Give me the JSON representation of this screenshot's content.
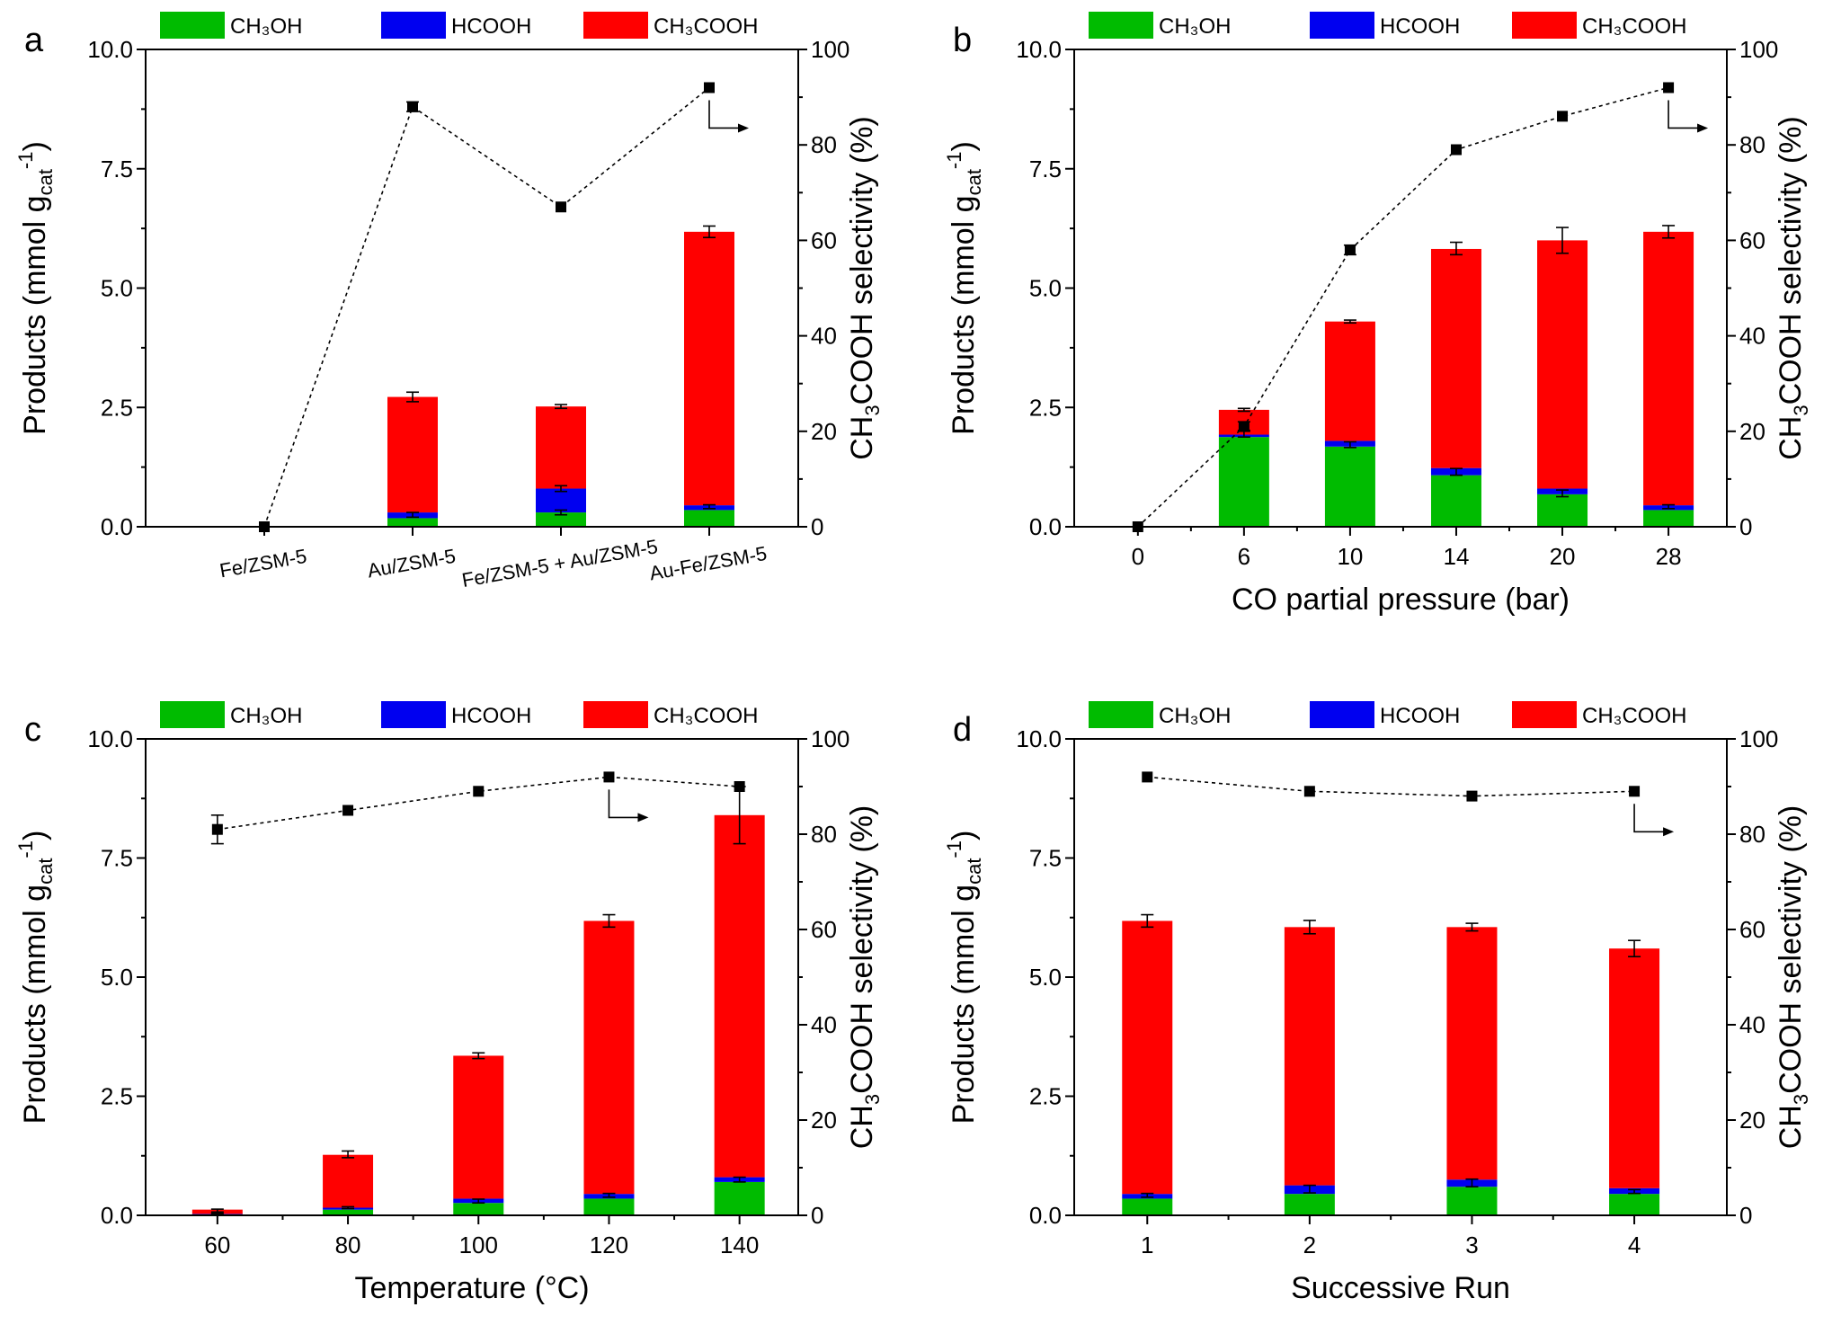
{
  "colors": {
    "ch3oh": "#00BB00",
    "hcooh": "#0000F0",
    "ch3cooh": "#FF0000",
    "axis": "#000000"
  },
  "legend": {
    "ch3oh": "CH₃OH",
    "hcooh": "HCOOH",
    "ch3cooh": "CH₃COOH"
  },
  "axis_titles": {
    "left_prefix": "Products (mmol g",
    "left_sub": "cat",
    "left_sup": "-1",
    "left_suffix": ")",
    "right_prefix": "CH",
    "right_sub": "3",
    "right_suffix": "COOH selectivity (%)"
  },
  "chart_data": [
    {
      "panel_label": "a",
      "type": "bar",
      "stacked": true,
      "xlabel": "",
      "categories": [
        "Fe/ZSM-5",
        "Au/ZSM-5",
        "Fe/ZSM-5 + Au/ZSM-5",
        "Au-Fe/ZSM-5"
      ],
      "category_ticks": [
        "Fe/ZSM-5",
        "Au/ZSM-5",
        "Fe/ZSM-5 + Au/ZSM-5",
        "Au-Fe/ZSM-5"
      ],
      "x_slots": [
        0,
        1,
        2,
        3
      ],
      "x_range": [
        -0.8,
        3.6
      ],
      "rotate_ticks": true,
      "ylim": [
        0,
        10
      ],
      "y2lim": [
        0,
        100
      ],
      "y_ticks": [
        "0.0",
        "2.5",
        "5.0",
        "7.5",
        "10.0"
      ],
      "y2_ticks": [
        "0",
        "20",
        "40",
        "60",
        "80",
        "100"
      ],
      "series": [
        {
          "name": "CH₃OH",
          "values": [
            0,
            0.18,
            0.3,
            0.35
          ]
        },
        {
          "name": "HCOOH",
          "values": [
            0,
            0.12,
            0.5,
            0.1
          ]
        },
        {
          "name": "CH₃COOH",
          "values": [
            0,
            2.42,
            1.72,
            5.73
          ]
        }
      ],
      "bar_errors": [
        {
          "y": [
            0,
            2.72,
            2.52,
            6.18
          ],
          "err": [
            0,
            0.1,
            0.04,
            0.12
          ]
        },
        {
          "y": [
            0,
            0.25,
            0.3,
            0.42
          ],
          "err": [
            0,
            0.05,
            0.05,
            0.04
          ]
        },
        {
          "y": [
            0,
            0,
            0.8,
            0
          ],
          "err": [
            0,
            0,
            0.06,
            0
          ]
        }
      ],
      "selectivity": {
        "values": [
          0,
          88,
          67,
          92
        ],
        "errors": [
          0,
          1,
          0,
          0
        ]
      },
      "arrow_at": 3
    },
    {
      "panel_label": "b",
      "type": "bar",
      "stacked": true,
      "xlabel": "CO partial pressure (bar)",
      "categories": [
        "0",
        "6",
        "10",
        "14",
        "20",
        "28"
      ],
      "category_ticks": [
        "0",
        "6",
        "10",
        "14",
        "20",
        "28"
      ],
      "x_slots": [
        0,
        1,
        2,
        3,
        4,
        5
      ],
      "x_range": [
        -0.6,
        5.55
      ],
      "rotate_ticks": false,
      "ylim": [
        0,
        10
      ],
      "y2lim": [
        0,
        100
      ],
      "y_ticks": [
        "0.0",
        "2.5",
        "5.0",
        "7.5",
        "10.0"
      ],
      "y2_ticks": [
        "0",
        "20",
        "40",
        "60",
        "80",
        "100"
      ],
      "series": [
        {
          "name": "CH₃OH",
          "values": [
            0,
            1.88,
            1.68,
            1.08,
            0.68,
            0.35
          ]
        },
        {
          "name": "HCOOH",
          "values": [
            0,
            0.05,
            0.12,
            0.15,
            0.12,
            0.1
          ]
        },
        {
          "name": "CH₃COOH",
          "values": [
            0,
            0.52,
            2.5,
            4.59,
            5.2,
            5.73
          ]
        }
      ],
      "bar_errors": [
        {
          "y": [
            0,
            2.45,
            4.3,
            5.83,
            6.0,
            6.18
          ],
          "err": [
            0,
            0.03,
            0.03,
            0.13,
            0.27,
            0.13
          ]
        },
        {
          "y": [
            0,
            1.95,
            1.72,
            1.15,
            0.7,
            0.42
          ],
          "err": [
            0,
            0.07,
            0.06,
            0.07,
            0.07,
            0.04
          ]
        }
      ],
      "selectivity": {
        "values": [
          0,
          21,
          58,
          79,
          86,
          92
        ],
        "errors": [
          0,
          1,
          1,
          0,
          0,
          0
        ]
      },
      "arrow_at": 5
    },
    {
      "panel_label": "c",
      "type": "bar",
      "stacked": true,
      "xlabel": "Temperature (°C)",
      "categories": [
        "60",
        "80",
        "100",
        "120",
        "140"
      ],
      "category_ticks": [
        "60",
        "80",
        "100",
        "120",
        "140"
      ],
      "x_slots": [
        0,
        1,
        2,
        3,
        4
      ],
      "x_range": [
        -0.55,
        4.45
      ],
      "rotate_ticks": false,
      "ylim": [
        0,
        10
      ],
      "y2lim": [
        0,
        100
      ],
      "y_ticks": [
        "0.0",
        "2.5",
        "5.0",
        "7.5",
        "10.0"
      ],
      "y2_ticks": [
        "0",
        "20",
        "40",
        "60",
        "80",
        "100"
      ],
      "series": [
        {
          "name": "CH₃OH",
          "values": [
            0.02,
            0.12,
            0.26,
            0.35,
            0.7
          ]
        },
        {
          "name": "HCOOH",
          "values": [
            0.01,
            0.04,
            0.09,
            0.1,
            0.1
          ]
        },
        {
          "name": "CH₃COOH",
          "values": [
            0.09,
            1.11,
            3.0,
            5.73,
            7.6
          ]
        }
      ],
      "bar_errors": [
        {
          "y": [
            0.1,
            1.28,
            3.35,
            6.18,
            8.4
          ],
          "err": [
            0.03,
            0.07,
            0.06,
            0.13,
            0.6
          ]
        },
        {
          "y": [
            0.03,
            0.16,
            0.3,
            0.42,
            0.75
          ],
          "err": [
            0.01,
            0.02,
            0.04,
            0.04,
            0.05
          ]
        }
      ],
      "selectivity": {
        "values": [
          81,
          85,
          89,
          92,
          90
        ],
        "errors": [
          3,
          0,
          0,
          0,
          0
        ]
      },
      "arrow_at": 3
    },
    {
      "panel_label": "d",
      "type": "bar",
      "stacked": true,
      "xlabel": "Successive Run",
      "categories": [
        "1",
        "2",
        "3",
        "4"
      ],
      "category_ticks": [
        "1",
        "2",
        "3",
        "4"
      ],
      "x_slots": [
        0,
        1,
        2,
        3
      ],
      "x_range": [
        -0.45,
        3.57
      ],
      "rotate_ticks": false,
      "ylim": [
        0,
        10
      ],
      "y2lim": [
        0,
        100
      ],
      "y_ticks": [
        "0.0",
        "2.5",
        "5.0",
        "7.5",
        "10.0"
      ],
      "y2_ticks": [
        "0",
        "20",
        "40",
        "60",
        "80",
        "100"
      ],
      "series": [
        {
          "name": "CH₃OH",
          "values": [
            0.35,
            0.45,
            0.6,
            0.45
          ]
        },
        {
          "name": "HCOOH",
          "values": [
            0.1,
            0.18,
            0.15,
            0.12
          ]
        },
        {
          "name": "CH₃COOH",
          "values": [
            5.73,
            5.42,
            5.3,
            5.03
          ]
        }
      ],
      "bar_errors": [
        {
          "y": [
            6.18,
            6.05,
            6.05,
            5.6
          ],
          "err": [
            0.13,
            0.14,
            0.08,
            0.17
          ]
        },
        {
          "y": [
            0.42,
            0.55,
            0.68,
            0.5
          ],
          "err": [
            0.04,
            0.08,
            0.08,
            0.04
          ]
        }
      ],
      "selectivity": {
        "values": [
          92,
          89,
          88,
          89
        ],
        "errors": [
          0,
          0,
          0,
          0
        ]
      },
      "arrow_at": 3
    }
  ]
}
